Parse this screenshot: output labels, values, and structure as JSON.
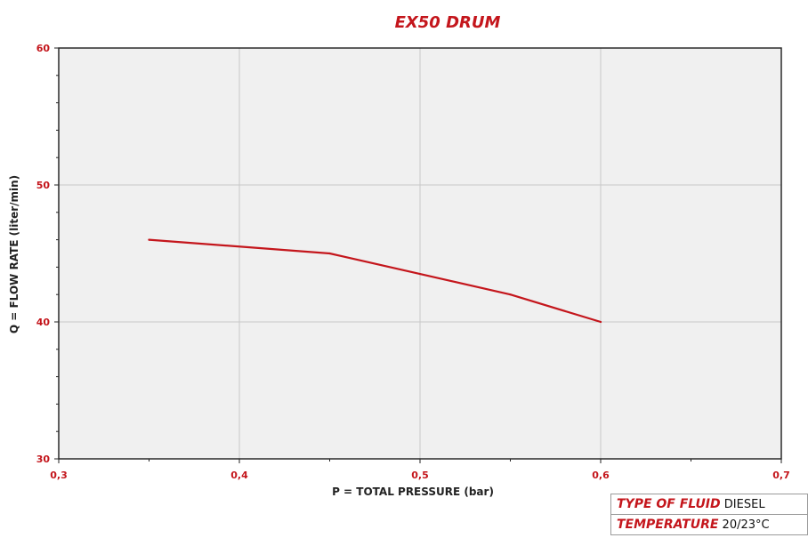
{
  "chart_data": {
    "type": "line",
    "title": "EX50 DRUM",
    "xlabel": "P = TOTAL PRESSURE (bar)",
    "ylabel": "Q = FLOW RATE (liter/min)",
    "xlim": [
      0.3,
      0.7
    ],
    "ylim": [
      30,
      60
    ],
    "x_ticks": [
      0.3,
      0.4,
      0.5,
      0.6,
      0.7
    ],
    "x_tick_labels": [
      "0,3",
      "0,4",
      "0,5",
      "0,6",
      "0,7"
    ],
    "x_minor_ticks": [
      0.35,
      0.45,
      0.55,
      0.65
    ],
    "y_ticks": [
      30,
      40,
      50,
      60
    ],
    "y_tick_labels": [
      "30",
      "40",
      "50",
      "60"
    ],
    "y_minor_step": 2,
    "grid": true,
    "series": [
      {
        "color": "#c4161c",
        "x": [
          0.35,
          0.45,
          0.5,
          0.55,
          0.6
        ],
        "y": [
          46,
          45,
          43.5,
          42,
          40
        ]
      }
    ]
  },
  "info_table": {
    "rows": [
      {
        "label": "TYPE OF FLUID",
        "value": "DIESEL"
      },
      {
        "label": "TEMPERATURE",
        "value": "20/23°C"
      }
    ]
  },
  "colors": {
    "accent": "#c4161c",
    "plot_background": "#f0f0f0",
    "grid": "#c8c8c8"
  }
}
